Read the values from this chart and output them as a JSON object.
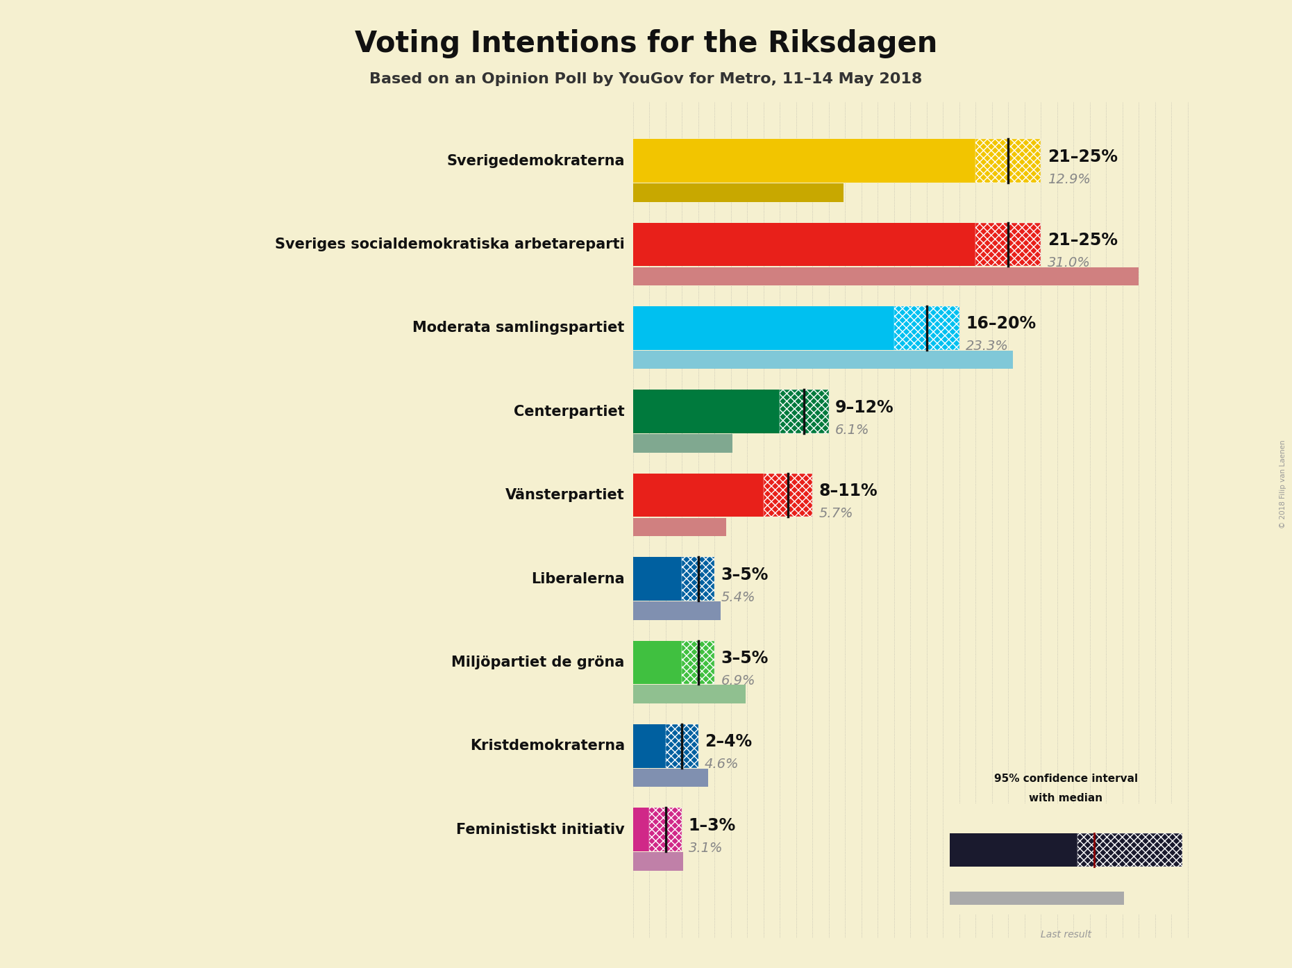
{
  "title": "Voting Intentions for the Riksdagen",
  "subtitle": "Based on an Opinion Poll by YouGov for Metro, 11–14 May 2018",
  "copyright": "© 2018 Filip van Laenen",
  "background_color": "#f5f0d0",
  "parties": [
    {
      "name": "Sverigedemokraterna",
      "ci_low": 21,
      "ci_high": 25,
      "median": 23,
      "last_result": 12.9,
      "color": "#F2C500",
      "hatch_color": "#D4A800",
      "last_color": "#C8A800",
      "label": "21–25%",
      "last_label": "12.9%"
    },
    {
      "name": "Sveriges socialdemokratiska arbetareparti",
      "ci_low": 21,
      "ci_high": 25,
      "median": 23,
      "last_result": 31.0,
      "color": "#E8201A",
      "hatch_color": "#C81510",
      "last_color": "#D08080",
      "label": "21–25%",
      "last_label": "31.0%"
    },
    {
      "name": "Moderata samlingspartiet",
      "ci_low": 16,
      "ci_high": 20,
      "median": 18,
      "last_result": 23.3,
      "color": "#00C0F0",
      "hatch_color": "#00A0D0",
      "last_color": "#80C8D8",
      "label": "16–20%",
      "last_label": "23.3%"
    },
    {
      "name": "Centerpartiet",
      "ci_low": 9,
      "ci_high": 12,
      "median": 10.5,
      "last_result": 6.1,
      "color": "#007A3D",
      "hatch_color": "#005A2D",
      "last_color": "#80A890",
      "label": "9–12%",
      "last_label": "6.1%"
    },
    {
      "name": "Vänsterpartiet",
      "ci_low": 8,
      "ci_high": 11,
      "median": 9.5,
      "last_result": 5.7,
      "color": "#E8201A",
      "hatch_color": "#C81510",
      "last_color": "#D08080",
      "label": "8–11%",
      "last_label": "5.7%"
    },
    {
      "name": "Liberalerna",
      "ci_low": 3,
      "ci_high": 5,
      "median": 4,
      "last_result": 5.4,
      "color": "#0060A0",
      "hatch_color": "#004880",
      "last_color": "#8090B0",
      "label": "3–5%",
      "last_label": "5.4%"
    },
    {
      "name": "Miljöpartiet de gröna",
      "ci_low": 3,
      "ci_high": 5,
      "median": 4,
      "last_result": 6.9,
      "color": "#40C040",
      "hatch_color": "#20A020",
      "last_color": "#90C090",
      "label": "3–5%",
      "last_label": "6.9%"
    },
    {
      "name": "Kristdemokraterna",
      "ci_low": 2,
      "ci_high": 4,
      "median": 3,
      "last_result": 4.6,
      "color": "#0060A0",
      "hatch_color": "#004880",
      "last_color": "#8090B0",
      "label": "2–4%",
      "last_label": "4.6%"
    },
    {
      "name": "Feministiskt initiativ",
      "ci_low": 1,
      "ci_high": 3,
      "median": 2,
      "last_result": 3.1,
      "color": "#D02888",
      "hatch_color": "#B01870",
      "last_color": "#C080A8",
      "label": "1–3%",
      "last_label": "3.1%"
    }
  ],
  "xlim_max": 35,
  "bar_height": 0.52,
  "last_bar_height": 0.22,
  "median_line_color": "#8B0000",
  "grid_color": "#999999",
  "party_fontsize": 15,
  "range_fontsize": 17,
  "last_fontsize": 14,
  "title_fontsize": 30,
  "subtitle_fontsize": 16,
  "legend_text": "95% confidence interval\nwith median",
  "legend_last_text": "Last result"
}
